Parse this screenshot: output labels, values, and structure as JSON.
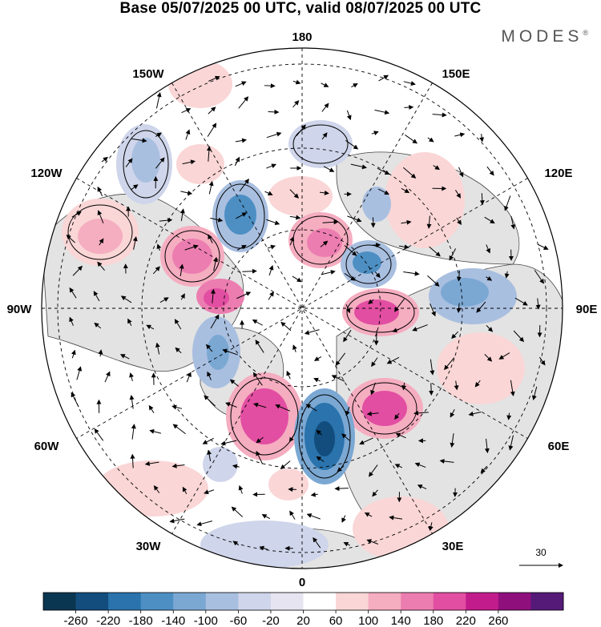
{
  "header": {
    "title": "Base 05/07/2025 00 UTC, valid 08/07/2025 00 UTC",
    "brand": "MODES",
    "brand_mark": "®"
  },
  "map": {
    "projection": "north-polar-stereographic",
    "longitude_labels": {
      "top": "180",
      "bottom": "0",
      "left": "90W",
      "right": "90E",
      "upper_left": "150W",
      "upper_right": "150E",
      "mid_left_upper": "120W",
      "mid_right_upper": "120E",
      "mid_left_lower": "60W",
      "mid_right_lower": "60E",
      "lower_left": "30W",
      "lower_right": "30E"
    },
    "wind_reference_label": "30",
    "colors": {
      "land": "#e3e3e3",
      "ocean": "#ffffff",
      "grid": "#000000"
    }
  },
  "colorbar": {
    "ticks": [
      "-260",
      "-220",
      "-180",
      "-140",
      "-100",
      "-60",
      "-20",
      "20",
      "60",
      "100",
      "140",
      "180",
      "220",
      "260"
    ],
    "colors": [
      "#0b3652",
      "#124d7d",
      "#2a73ac",
      "#4d8fc3",
      "#7ba8d3",
      "#a9bfe0",
      "#cfd5ea",
      "#e7e4f1",
      "#ffffff",
      "#fad6d6",
      "#f5adc0",
      "#ec7db0",
      "#e24ea2",
      "#c21c8c",
      "#8f0f7d",
      "#551a78"
    ]
  },
  "chart_data": {
    "type": "heatmap",
    "title": "Base 05/07/2025 00 UTC, valid 08/07/2025 00 UTC",
    "color_scale_ticks": [
      -260,
      -220,
      -180,
      -140,
      -100,
      -60,
      -20,
      20,
      60,
      100,
      140,
      180,
      220,
      260
    ],
    "wind_vector_reference": 30,
    "legend": "colorbar bottom"
  }
}
